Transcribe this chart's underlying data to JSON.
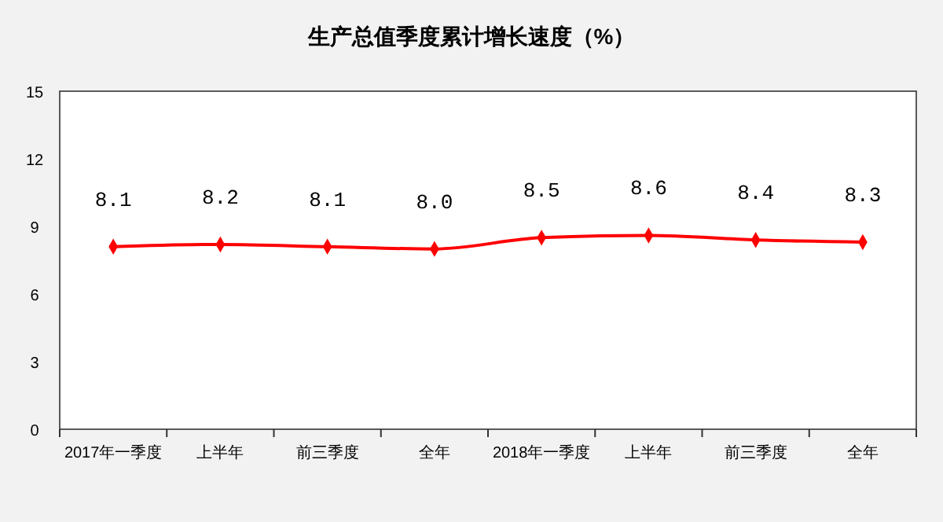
{
  "chart_data": {
    "type": "line",
    "title": "生产总值季度累计增长速度（%）",
    "categories": [
      "2017年一季度",
      "上半年",
      "前三季度",
      "全年",
      "2018年一季度",
      "上半年",
      "前三季度",
      "全年"
    ],
    "series": [
      {
        "color": "#ff0000",
        "values": [
          8.1,
          8.2,
          8.1,
          8.0,
          8.5,
          8.6,
          8.4,
          8.3
        ],
        "value_labels": [
          "8.1",
          "8.2",
          "8.1",
          "8.0",
          "8.5",
          "8.6",
          "8.4",
          "8.3"
        ]
      }
    ],
    "ylim": [
      0,
      15
    ],
    "yticks": [
      0,
      3,
      6,
      9,
      12,
      15
    ],
    "marker": "diamond"
  }
}
